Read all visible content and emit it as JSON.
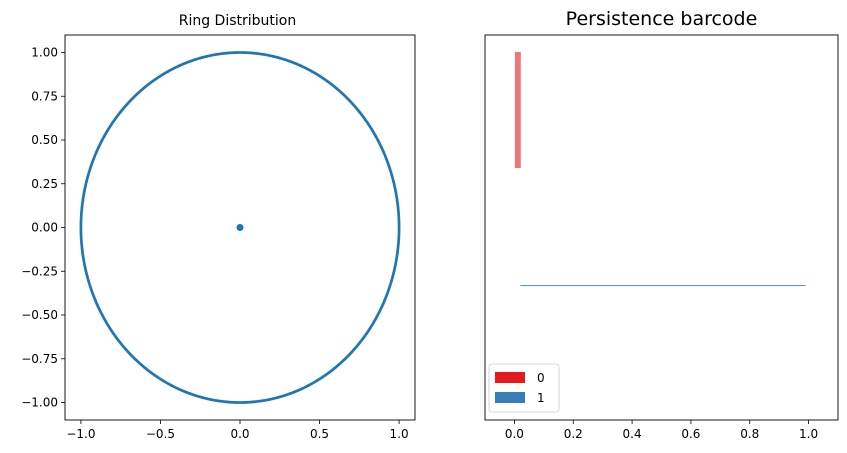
{
  "chart_data": [
    {
      "type": "scatter",
      "title": "Ring Distribution",
      "xlabel": "",
      "ylabel": "",
      "xlim": [
        -1.1,
        1.1
      ],
      "ylim": [
        -1.1,
        1.1
      ],
      "xticks": [
        -1.0,
        -0.5,
        0.0,
        0.5,
        1.0
      ],
      "xtick_labels": [
        "−1.0",
        "−0.5",
        "0.0",
        "0.5",
        "1.0"
      ],
      "yticks": [
        1.0,
        0.75,
        0.5,
        0.25,
        0.0,
        -0.25,
        -0.5,
        -0.75,
        -1.0
      ],
      "ytick_labels": [
        "1.00",
        "0.75",
        "0.50",
        "0.25",
        "0.00",
        "−0.25",
        "−0.50",
        "−0.75",
        "−1.00"
      ],
      "grid": false,
      "series": [
        {
          "shape": "circle",
          "radius": 1.0,
          "count": 720,
          "color": "#1f77b4"
        },
        {
          "points": [
            [
              0.0,
              0.0
            ]
          ],
          "color": "#1f77b4"
        }
      ]
    },
    {
      "type": "bar",
      "title": "Persistence barcode",
      "xlabel": "",
      "ylabel": "",
      "xlim": [
        -0.1,
        1.1
      ],
      "xticks": [
        0.0,
        0.2,
        0.4,
        0.6,
        0.8,
        1.0
      ],
      "xtick_labels": [
        "0.0",
        "0.2",
        "0.4",
        "0.6",
        "0.8",
        "1.0"
      ],
      "grid": false,
      "legend_position": "lower-left",
      "series": [
        {
          "name": "0",
          "color": "#e41a1c",
          "bars": [
            {
              "birth": 0.0,
              "death": 0.02,
              "row": 1
            }
          ]
        },
        {
          "name": "1",
          "color": "#377eb8",
          "bars": [
            {
              "birth": 0.02,
              "death": 0.99,
              "row": 0
            }
          ]
        }
      ]
    }
  ]
}
